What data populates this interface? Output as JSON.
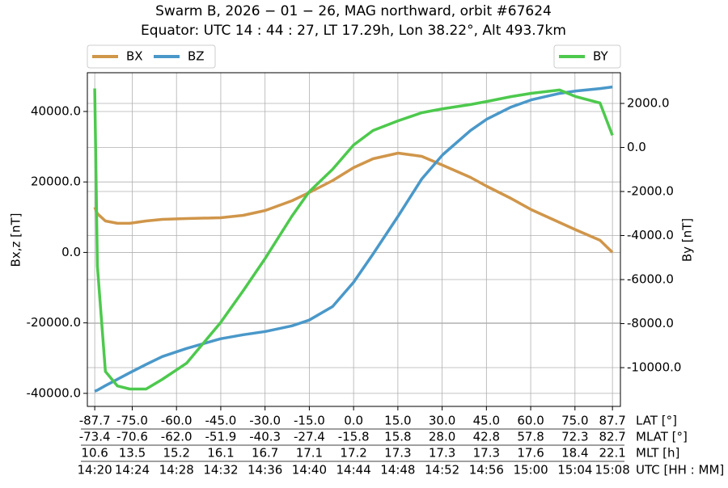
{
  "chart_data": {
    "type": "line",
    "title": "Swarm B,  2026 − 01 − 26,  MAG northward,  orbit #67624",
    "subtitle": "Equator:  UTC 14 : 44 : 27,  LT 17.29h,  Lon 38.22°,  Alt 493.7km",
    "ylabel": "Bx,z [nT]",
    "y2label": "By [nT]",
    "xlabel": "LAT [°]",
    "grid": true,
    "x": [
      -87.7,
      -86.8,
      -84.1,
      -80,
      -75.8,
      -70.3,
      -64.8,
      -56.6,
      -45.1,
      -37.4,
      -29.9,
      -20.9,
      -15.1,
      -7.1,
      0,
      6.6,
      15.1,
      23.1,
      30.2,
      39.6,
      45.1,
      53.3,
      60.2,
      69.8,
      75.3,
      83.5,
      87.7
    ],
    "xlim": [
      -90.2,
      90.4
    ],
    "xticks": [
      -87.7,
      {
        "value": -75,
        "label": "-75.0"
      },
      {
        "value": -60,
        "label": "-60.0"
      },
      {
        "value": -45,
        "label": "-45.0"
      },
      {
        "value": -30,
        "label": "-30.0"
      },
      {
        "value": -15,
        "label": "-15.0"
      },
      {
        "value": 0,
        "label": "0.0"
      },
      {
        "value": 15,
        "label": "15.0"
      },
      {
        "value": 30,
        "label": "30.0"
      },
      {
        "value": 45,
        "label": "45.0"
      },
      {
        "value": 60,
        "label": "60.0"
      },
      {
        "value": 75,
        "label": "75.0"
      },
      87.7
    ],
    "x_rows": [
      {
        "name": "MLAT [°]",
        "labels": [
          "-73.4",
          "-70.6",
          "-62.0",
          "-51.9",
          "-40.3",
          "-27.4",
          "-15.8",
          "15.8",
          "28.0",
          "42.8",
          "57.8",
          "72.3",
          "82.7"
        ]
      },
      {
        "name": "MLT [h]",
        "labels": [
          "10.6",
          "13.5",
          "15.2",
          "16.1",
          "16.7",
          "17.1",
          "17.2",
          "17.3",
          "17.3",
          "17.3",
          "17.6",
          "18.4",
          "22.1"
        ]
      },
      {
        "name": "UTC [HH : MM]",
        "labels": [
          "14:20",
          "14:24",
          "14:28",
          "14:32",
          "14:36",
          "14:40",
          "14:44",
          "14:48",
          "14:52",
          "14:56",
          "15:00",
          "15:04",
          "15:08"
        ]
      }
    ],
    "ylim": [
      -43700,
      51000
    ],
    "yticks": [
      {
        "value": -40000,
        "label": "-40000.0"
      },
      {
        "value": -20000,
        "label": "-20000.0"
      },
      {
        "value": 0,
        "label": "0.0"
      },
      {
        "value": 20000,
        "label": "20000.0"
      },
      {
        "value": 40000,
        "label": "40000.0"
      }
    ],
    "y2lim": [
      -11760,
      3395
    ],
    "y2ticks": [
      {
        "value": -10000,
        "label": "-10000.0"
      },
      {
        "value": -8000,
        "label": "-8000.0"
      },
      {
        "value": -6000,
        "label": "-6000.0"
      },
      {
        "value": -4000,
        "label": "-4000.0"
      },
      {
        "value": -2000,
        "label": "-2000.0"
      },
      {
        "value": 0,
        "label": "0.0"
      },
      {
        "value": 2000,
        "label": "2000.0"
      }
    ],
    "legend": "upper left",
    "legend2": "upper right",
    "series": [
      {
        "name": "BX",
        "color": "#d0964a",
        "values": [
          12830,
          11000,
          8930,
          8250,
          8250,
          8930,
          9390,
          9620,
          9850,
          10540,
          11910,
          14660,
          16950,
          20390,
          24050,
          26570,
          28180,
          27260,
          24740,
          21300,
          18790,
          15350,
          12140,
          8480,
          6410,
          3440,
          0
        ]
      },
      {
        "name": "BZ",
        "color": "#4a98c9",
        "values": [
          -39400,
          -39100,
          -37800,
          -36000,
          -34140,
          -31800,
          -29550,
          -27260,
          -24510,
          -23370,
          -22450,
          -20850,
          -19240,
          -15350,
          -8480,
          -460,
          10310,
          20850,
          27720,
          34590,
          37800,
          41240,
          43300,
          45130,
          45820,
          46510,
          46960
        ]
      },
      {
        "name": "BY",
        "color": "#4dc94d",
        "axis": "y2",
        "values": [
          2680,
          -5390,
          -10170,
          -10830,
          -10970,
          -10970,
          -10530,
          -9800,
          -7960,
          -6500,
          -5030,
          -3120,
          -2020,
          -990,
          110,
          770,
          1210,
          1580,
          1760,
          1950,
          2090,
          2310,
          2460,
          2610,
          2310,
          2020,
          550
        ]
      }
    ]
  }
}
